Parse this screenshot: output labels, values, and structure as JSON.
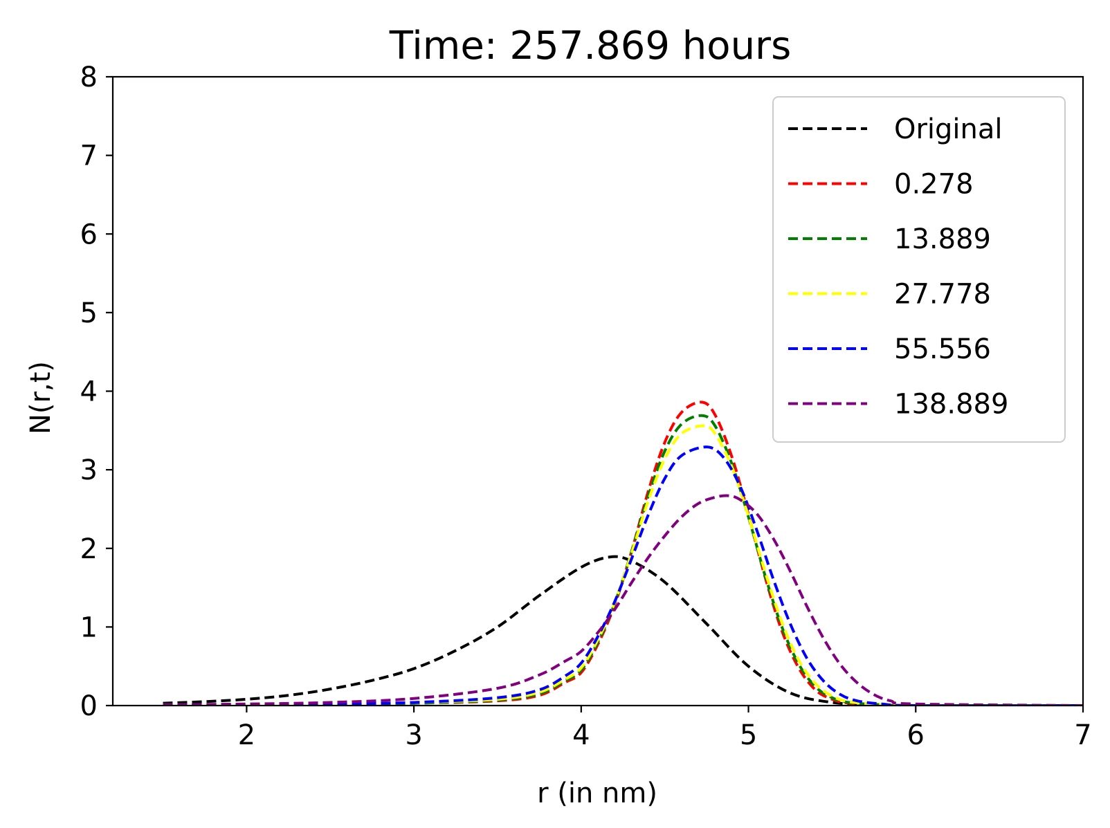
{
  "chart_data": {
    "type": "line",
    "title": "Time: 257.869 hours",
    "xlabel": "r (in nm)",
    "ylabel": "N(r,t)",
    "xlim": [
      1.2,
      7
    ],
    "ylim": [
      0,
      8
    ],
    "xticks": [
      2,
      3,
      4,
      5,
      6,
      7
    ],
    "yticks": [
      0,
      1,
      2,
      3,
      4,
      5,
      6,
      7,
      8
    ],
    "grid": false,
    "legend_position": "upper right",
    "line_style": "dashed",
    "series": [
      {
        "name": "Original",
        "color": "#000000",
        "x": [
          1.5,
          1.75,
          2.0,
          2.25,
          2.5,
          2.75,
          3.0,
          3.25,
          3.5,
          3.75,
          4.0,
          4.17,
          4.3,
          4.5,
          4.75,
          5.0,
          5.25,
          5.5,
          5.75,
          6.0,
          7.0
        ],
        "y": [
          0.03,
          0.05,
          0.08,
          0.13,
          0.21,
          0.32,
          0.47,
          0.7,
          1.0,
          1.4,
          1.76,
          1.89,
          1.84,
          1.57,
          1.04,
          0.5,
          0.16,
          0.04,
          0.01,
          0.0,
          0.0
        ]
      },
      {
        "name": "0.278",
        "color": "#ff0000",
        "x": [
          1.5,
          2.0,
          2.5,
          3.0,
          3.5,
          3.75,
          3.9,
          4.0,
          4.1,
          4.2,
          4.3,
          4.4,
          4.5,
          4.6,
          4.72,
          4.8,
          4.9,
          5.0,
          5.1,
          5.2,
          5.3,
          5.4,
          5.5,
          5.6,
          5.8,
          6.0,
          7.0
        ],
        "y": [
          0.01,
          0.01,
          0.02,
          0.03,
          0.06,
          0.13,
          0.29,
          0.42,
          0.78,
          1.28,
          1.95,
          2.72,
          3.35,
          3.73,
          3.86,
          3.7,
          3.17,
          2.43,
          1.63,
          0.95,
          0.48,
          0.2,
          0.08,
          0.03,
          0.0,
          0.0,
          0.0
        ]
      },
      {
        "name": "13.889",
        "color": "#008000",
        "x": [
          1.5,
          2.0,
          2.5,
          3.0,
          3.5,
          3.75,
          3.9,
          4.0,
          4.1,
          4.2,
          4.3,
          4.4,
          4.5,
          4.6,
          4.72,
          4.8,
          4.9,
          5.0,
          5.1,
          5.2,
          5.3,
          5.4,
          5.5,
          5.6,
          5.8,
          6.0,
          7.0
        ],
        "y": [
          0.01,
          0.01,
          0.02,
          0.03,
          0.07,
          0.15,
          0.31,
          0.45,
          0.81,
          1.3,
          1.95,
          2.66,
          3.24,
          3.58,
          3.69,
          3.56,
          3.08,
          2.4,
          1.65,
          1.0,
          0.53,
          0.24,
          0.1,
          0.04,
          0.01,
          0.0,
          0.0
        ]
      },
      {
        "name": "27.778",
        "color": "#ffff00",
        "x": [
          1.5,
          2.0,
          2.5,
          3.0,
          3.5,
          3.75,
          3.9,
          4.0,
          4.1,
          4.2,
          4.3,
          4.4,
          4.5,
          4.6,
          4.73,
          4.8,
          4.9,
          5.0,
          5.1,
          5.2,
          5.3,
          5.4,
          5.5,
          5.6,
          5.8,
          6.0,
          7.0
        ],
        "y": [
          0.01,
          0.01,
          0.02,
          0.04,
          0.08,
          0.17,
          0.33,
          0.48,
          0.84,
          1.31,
          1.93,
          2.6,
          3.14,
          3.46,
          3.56,
          3.46,
          3.04,
          2.41,
          1.7,
          1.06,
          0.58,
          0.28,
          0.12,
          0.05,
          0.01,
          0.0,
          0.0
        ]
      },
      {
        "name": "55.556",
        "color": "#0000ff",
        "x": [
          1.5,
          2.0,
          2.5,
          3.0,
          3.5,
          3.75,
          3.9,
          4.0,
          4.1,
          4.2,
          4.3,
          4.4,
          4.5,
          4.6,
          4.75,
          4.85,
          4.95,
          5.05,
          5.15,
          5.25,
          5.35,
          5.45,
          5.55,
          5.65,
          5.8,
          6.0,
          7.0
        ],
        "y": [
          0.01,
          0.01,
          0.02,
          0.04,
          0.1,
          0.2,
          0.37,
          0.54,
          0.88,
          1.32,
          1.86,
          2.42,
          2.89,
          3.18,
          3.29,
          3.16,
          2.79,
          2.23,
          1.6,
          1.04,
          0.6,
          0.31,
          0.14,
          0.06,
          0.02,
          0.0,
          0.0
        ]
      },
      {
        "name": "138.889",
        "color": "#800080",
        "x": [
          1.5,
          2.0,
          2.5,
          3.0,
          3.5,
          3.75,
          3.9,
          4.0,
          4.1,
          4.2,
          4.3,
          4.4,
          4.5,
          4.6,
          4.7,
          4.8,
          4.88,
          4.95,
          5.05,
          5.15,
          5.25,
          5.35,
          5.45,
          5.55,
          5.65,
          5.75,
          5.85,
          6.0,
          7.0
        ],
        "y": [
          0.01,
          0.02,
          0.04,
          0.09,
          0.22,
          0.39,
          0.56,
          0.69,
          0.93,
          1.22,
          1.56,
          1.88,
          2.16,
          2.4,
          2.57,
          2.65,
          2.67,
          2.62,
          2.44,
          2.12,
          1.71,
          1.26,
          0.85,
          0.52,
          0.29,
          0.14,
          0.06,
          0.02,
          0.0
        ]
      }
    ]
  }
}
